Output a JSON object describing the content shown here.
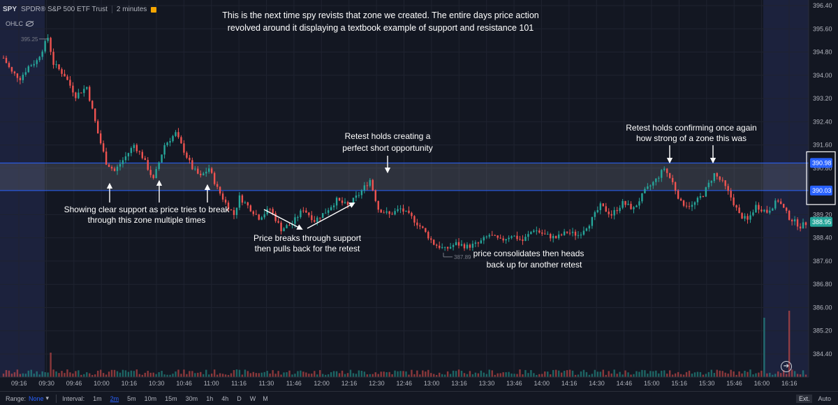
{
  "symbol": {
    "ticker": "SPY",
    "name": "SPDR® S&P 500 ETF Trust",
    "timeframe": "2 minutes"
  },
  "ohlc_label": "OHLC",
  "annotations": [
    "This is the next time spy revists that zone we created. The entire days price action",
    "revolved around it displaying a textbook example of support and resistance 101",
    "Showing clear support as price tries to break",
    "through this zone multiple times",
    "Price breaks through support",
    "then pulls back for the retest",
    "Retest holds creating a",
    "perfect short opportunity",
    "price consolidates then heads",
    "back up for another retest",
    "Retest holds confirming once again",
    "how strong of a zone this was"
  ],
  "bottom_bar": {
    "range_label": "Range:",
    "range_value": "None",
    "interval_label": "Interval:",
    "intervals": [
      "1m",
      "2m",
      "5m",
      "10m",
      "15m",
      "30m",
      "1h",
      "4h",
      "D",
      "W",
      "M"
    ],
    "selected_interval": "2m",
    "ext": "Ext.",
    "auto": "Auto"
  },
  "chart_data": {
    "type": "candlestick",
    "y_ticks": [
      396.4,
      395.6,
      394.8,
      394.0,
      393.2,
      392.4,
      391.6,
      390.8,
      389.2,
      388.4,
      387.6,
      386.8,
      386.0,
      385.2,
      384.4
    ],
    "y_range": [
      383.7,
      396.5
    ],
    "x_ticks": [
      "09:16",
      "09:30",
      "09:46",
      "10:00",
      "10:16",
      "10:30",
      "10:46",
      "11:00",
      "11:16",
      "11:30",
      "11:46",
      "12:00",
      "12:16",
      "12:30",
      "12:46",
      "13:00",
      "13:16",
      "13:30",
      "13:46",
      "14:00",
      "14:16",
      "14:30",
      "14:46",
      "15:00",
      "15:16",
      "15:30",
      "15:46",
      "16:00",
      "16:16"
    ],
    "zone": {
      "low": 390.03,
      "high": 390.98
    },
    "price_labels": {
      "zone_high": "390.98",
      "zone_low": "390.03",
      "last": "388.95"
    },
    "high_marker": {
      "value": 395.25,
      "label": "395.25"
    },
    "low_marker": {
      "value": 387.89,
      "label": "387.89"
    },
    "anchor_closes": [
      [
        0,
        394.6
      ],
      [
        3,
        394.1
      ],
      [
        6,
        393.9
      ],
      [
        9,
        394.3
      ],
      [
        12,
        394.5
      ],
      [
        16,
        395.3
      ],
      [
        18,
        394.4
      ],
      [
        22,
        394.0
      ],
      [
        26,
        393.3
      ],
      [
        30,
        393.6
      ],
      [
        34,
        392.0
      ],
      [
        37,
        391.0
      ],
      [
        40,
        390.7
      ],
      [
        44,
        391.2
      ],
      [
        47,
        391.6
      ],
      [
        50,
        391.2
      ],
      [
        54,
        390.4
      ],
      [
        58,
        391.6
      ],
      [
        62,
        392.0
      ],
      [
        65,
        391.4
      ],
      [
        68,
        390.8
      ],
      [
        71,
        390.5
      ],
      [
        74,
        390.8
      ],
      [
        77,
        390.1
      ],
      [
        80,
        389.6
      ],
      [
        83,
        389.2
      ],
      [
        85,
        389.8
      ],
      [
        88,
        389.5
      ],
      [
        92,
        389.1
      ],
      [
        96,
        389.4
      ],
      [
        100,
        388.7
      ],
      [
        104,
        388.9
      ],
      [
        108,
        389.4
      ],
      [
        112,
        389.0
      ],
      [
        116,
        389.3
      ],
      [
        120,
        389.7
      ],
      [
        124,
        389.5
      ],
      [
        128,
        389.9
      ],
      [
        132,
        390.4
      ],
      [
        135,
        389.4
      ],
      [
        139,
        389.2
      ],
      [
        143,
        389.4
      ],
      [
        147,
        389.1
      ],
      [
        151,
        388.7
      ],
      [
        155,
        388.2
      ],
      [
        159,
        388.0
      ],
      [
        163,
        388.2
      ],
      [
        167,
        388.1
      ],
      [
        171,
        388.2
      ],
      [
        175,
        388.5
      ],
      [
        179,
        388.3
      ],
      [
        183,
        388.5
      ],
      [
        187,
        388.3
      ],
      [
        191,
        388.7
      ],
      [
        195,
        388.5
      ],
      [
        199,
        388.4
      ],
      [
        203,
        388.6
      ],
      [
        207,
        388.5
      ],
      [
        211,
        388.9
      ],
      [
        215,
        389.5
      ],
      [
        219,
        389.2
      ],
      [
        223,
        389.6
      ],
      [
        227,
        389.4
      ],
      [
        231,
        390.0
      ],
      [
        235,
        390.4
      ],
      [
        238,
        390.8
      ],
      [
        241,
        390.3
      ],
      [
        244,
        389.6
      ],
      [
        248,
        389.5
      ],
      [
        252,
        389.9
      ],
      [
        256,
        390.6
      ],
      [
        259,
        390.3
      ],
      [
        262,
        389.8
      ],
      [
        265,
        389.2
      ],
      [
        268,
        389.0
      ],
      [
        271,
        389.5
      ],
      [
        275,
        389.3
      ],
      [
        279,
        389.7
      ],
      [
        283,
        389.1
      ],
      [
        287,
        388.8
      ],
      [
        290,
        388.95
      ]
    ],
    "volume_spikes": [
      [
        274,
        0.85
      ],
      [
        283,
        0.95
      ],
      [
        17,
        0.35
      ]
    ]
  }
}
